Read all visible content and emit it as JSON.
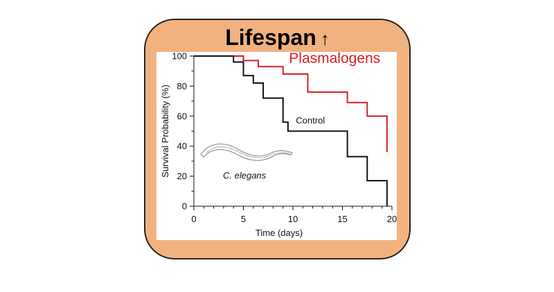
{
  "header": {
    "title": "Lifespan",
    "title_arrow": "↑"
  },
  "colors": {
    "frame_fill": "#f2b27f",
    "plasmalogens": "#d41f26",
    "control": "#111111",
    "worm": "#9a9a9a"
  },
  "annotation": {
    "organism": "C. elegans",
    "organism_icon": "worm-icon"
  },
  "chart_data": {
    "type": "line",
    "step": true,
    "title": "",
    "xlabel": "Time (days)",
    "ylabel": "Survival Probability (%)",
    "xlim": [
      0,
      20
    ],
    "ylim": [
      0,
      100
    ],
    "xticks": [
      0,
      5,
      10,
      15,
      20
    ],
    "yticks": [
      0,
      20,
      40,
      60,
      80,
      100
    ],
    "grid": false,
    "legend": "inline labels",
    "series": [
      {
        "name": "Plasmalogens",
        "color": "#d41f26",
        "x": [
          0,
          5,
          6.5,
          9,
          11.5,
          15.5,
          17.5,
          19.5,
          19.5
        ],
        "y": [
          100,
          97,
          93,
          88,
          76,
          69,
          60,
          53,
          36
        ]
      },
      {
        "name": "Control",
        "color": "#111111",
        "x": [
          0,
          4,
          5,
          6,
          7,
          9,
          9.5,
          10,
          15.5,
          17.5,
          19.5,
          19.5
        ],
        "y": [
          100,
          96,
          87,
          82,
          72,
          56,
          50,
          50,
          33,
          17,
          17,
          0
        ]
      }
    ]
  }
}
